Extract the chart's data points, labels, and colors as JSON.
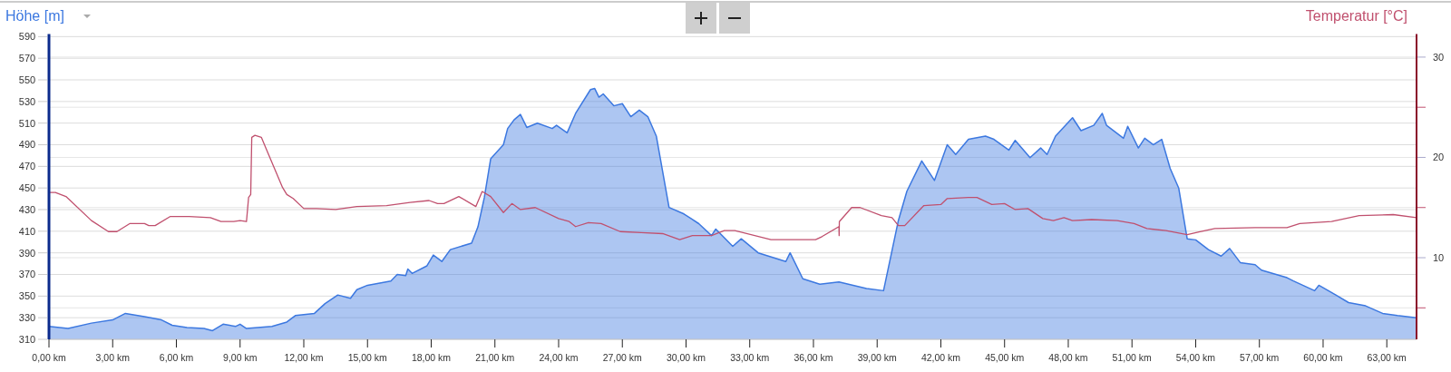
{
  "chart_data": {
    "type": "area",
    "ylabel": "Höhe [m]",
    "y2label": "Temperatur [°C]",
    "xlim": [
      0,
      64.4
    ],
    "ylim": [
      310,
      592.4
    ],
    "y2lim": [
      1.86,
      32.3
    ],
    "xticks": [
      {
        "value": 0,
        "label": "0,00 km"
      },
      {
        "value": 3,
        "label": "3,00 km"
      },
      {
        "value": 6,
        "label": "6,00 km"
      },
      {
        "value": 9,
        "label": "9,00 km"
      },
      {
        "value": 12,
        "label": "12,00 km"
      },
      {
        "value": 15,
        "label": "15,00 km"
      },
      {
        "value": 18,
        "label": "18,00 km"
      },
      {
        "value": 21,
        "label": "21,00 km"
      },
      {
        "value": 24,
        "label": "24,00 km"
      },
      {
        "value": 27,
        "label": "27,00 km"
      },
      {
        "value": 30,
        "label": "30,00 km"
      },
      {
        "value": 33,
        "label": "33,00 km"
      },
      {
        "value": 36,
        "label": "36,00 km"
      },
      {
        "value": 39,
        "label": "39,00 km"
      },
      {
        "value": 42,
        "label": "42,00 km"
      },
      {
        "value": 45,
        "label": "45,00 km"
      },
      {
        "value": 48,
        "label": "48,00 km"
      },
      {
        "value": 51,
        "label": "51,00 km"
      },
      {
        "value": 54,
        "label": "54,00 km"
      },
      {
        "value": 57,
        "label": "57,00 km"
      },
      {
        "value": 60,
        "label": "60,00 km"
      },
      {
        "value": 63,
        "label": "63,00 km"
      }
    ],
    "yticks": [
      310,
      330,
      350,
      370,
      390,
      410,
      430,
      450,
      470,
      490,
      510,
      530,
      550,
      570,
      590
    ],
    "y2ticks": [
      {
        "value": 5,
        "label": null
      },
      10,
      {
        "value": 15,
        "label": null
      },
      20,
      {
        "value": 25,
        "label": null
      },
      30
    ],
    "grid": "y",
    "series": [
      {
        "axis": "y",
        "color": "#3c78e0",
        "x": [
          0,
          0.9,
          2,
          3,
          3.6,
          4.5,
          5.3,
          5.8,
          6.5,
          7.3,
          7.7,
          8.2,
          8.8,
          9,
          9.3,
          10.5,
          11.2,
          11.6,
          12.5,
          13,
          13.6,
          14.2,
          14.5,
          15,
          16.1,
          16.4,
          16.8,
          16.9,
          17.1,
          17.8,
          18.1,
          18.5,
          18.9,
          19.9,
          20.2,
          20.5,
          20.8,
          21.4,
          21.6,
          21.9,
          22.2,
          22.5,
          23,
          23.7,
          23.9,
          24.4,
          24.8,
          25.5,
          25.7,
          25.9,
          26.1,
          26.6,
          27,
          27.4,
          27.8,
          28.2,
          28.6,
          29.2,
          29.9,
          30.6,
          31.2,
          31.4,
          32.2,
          32.6,
          33.4,
          34.7,
          34.9,
          35.5,
          36.3,
          37.2,
          38.5,
          39.3,
          40,
          40.4,
          41.1,
          41.7,
          42.3,
          42.7,
          43.3,
          44.1,
          44.5,
          45.2,
          45.5,
          46.2,
          46.7,
          47,
          47.4,
          48.2,
          48.6,
          49.2,
          49.6,
          49.8,
          50.6,
          50.8,
          51.3,
          51.6,
          52,
          52.4,
          52.8,
          53.2,
          53.6,
          54,
          54.6,
          55.2,
          55.6,
          56.1,
          56.8,
          57.1,
          58.3,
          58.6,
          59.6,
          59.8,
          60.6,
          61.2,
          62,
          62.8,
          63.5,
          64.4
        ],
        "values": [
          322,
          320,
          325,
          328,
          334,
          331,
          328,
          323,
          321,
          320,
          318,
          324,
          322,
          324,
          320,
          322,
          326,
          332,
          334,
          343,
          351,
          348,
          356,
          360,
          364,
          370,
          369,
          375,
          371,
          378,
          388,
          382,
          393,
          399,
          414,
          441,
          477,
          490,
          505,
          513,
          518,
          506,
          510,
          505,
          508,
          501,
          519,
          541,
          542,
          534,
          537,
          526,
          528,
          516,
          522,
          516,
          498,
          432,
          426,
          417,
          406,
          412,
          396,
          403,
          390,
          382,
          390,
          366,
          361,
          363,
          357,
          355,
          420,
          447,
          475,
          457,
          490,
          481,
          495,
          498,
          495,
          485,
          494,
          478,
          487,
          481,
          498,
          515,
          503,
          508,
          519,
          508,
          496,
          507,
          487,
          496,
          490,
          495,
          468,
          450,
          403,
          402,
          393,
          387,
          394,
          381,
          379,
          374,
          367,
          364,
          355,
          360,
          351,
          344,
          341,
          334,
          332,
          330
        ]
      },
      {
        "type": "line",
        "axis": "y2",
        "color": "#c0506e",
        "x": [
          0,
          0.3,
          0.8,
          2,
          2.8,
          3.2,
          3.8,
          4.5,
          4.7,
          5,
          5.7,
          6.6,
          7.6,
          8.1,
          8.7,
          9,
          9.3,
          9.4,
          9.5,
          9.55,
          9.7,
          10,
          10.3,
          11,
          11.2,
          11.5,
          12,
          12.6,
          13.5,
          14.5,
          15.9,
          17,
          17.9,
          18.3,
          18.6,
          19.3,
          20.1,
          20.4,
          20.8,
          21.4,
          21.8,
          22.2,
          22.9,
          24,
          24.5,
          24.8,
          25.4,
          26,
          26.9,
          27.9,
          28.9,
          29.7,
          30.3,
          31.2,
          31.8,
          32.3,
          34,
          36.1,
          36.4,
          37.2,
          37.21,
          37.22,
          37.8,
          38.2,
          39.2,
          39.7,
          40,
          40.3,
          41.2,
          42,
          42.3,
          43.3,
          43.7,
          44.4,
          45,
          45.5,
          46.1,
          46.8,
          47.3,
          47.8,
          48.2,
          49.1,
          50.3,
          51.1,
          51.7,
          52.6,
          53.6,
          54.2,
          54.9,
          56.8,
          58.3,
          58.9,
          60.4,
          61.7,
          63.3,
          64.4
        ],
        "values": [
          16.5,
          16.5,
          16.1,
          13.7,
          12.6,
          12.6,
          13.4,
          13.4,
          13.2,
          13.2,
          14.1,
          14.1,
          14,
          13.6,
          13.6,
          13.7,
          13.6,
          16,
          16.3,
          22,
          22.2,
          22,
          20.5,
          17,
          16.3,
          15.9,
          14.9,
          14.9,
          14.8,
          15.1,
          15.2,
          15.5,
          15.7,
          15.4,
          15.4,
          16.1,
          15.1,
          16.6,
          16.1,
          14.5,
          15.4,
          14.8,
          15,
          13.9,
          13.6,
          13.1,
          13.5,
          13.4,
          12.6,
          12.5,
          12.4,
          11.8,
          12.2,
          12.2,
          12.7,
          12.7,
          11.8,
          11.8,
          12.1,
          13.1,
          12.2,
          13.6,
          15,
          15,
          14.2,
          14,
          13.2,
          13.2,
          15.2,
          15.3,
          15.9,
          16,
          16,
          15.3,
          15.4,
          14.8,
          14.9,
          13.9,
          13.7,
          14,
          13.7,
          13.8,
          13.7,
          13.4,
          12.9,
          12.7,
          12.3,
          12.6,
          12.9,
          13,
          13,
          13.4,
          13.6,
          14.2,
          14.3,
          14
        ]
      }
    ]
  }
}
